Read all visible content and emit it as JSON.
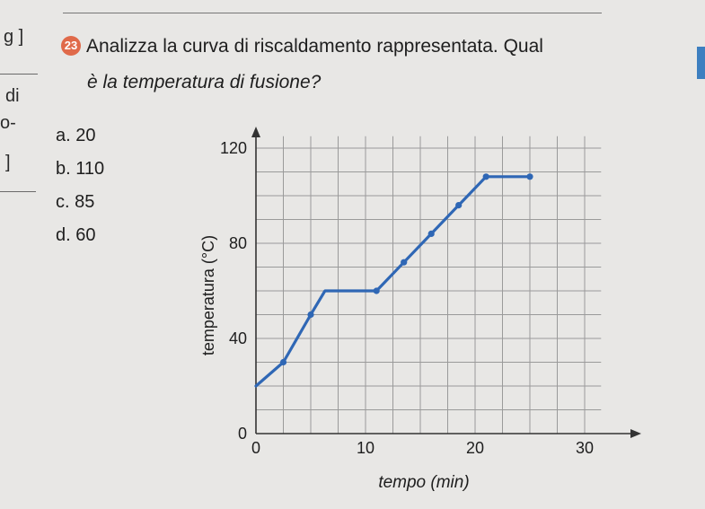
{
  "margin": {
    "l1": "g ]",
    "l2": "di",
    "l3": "o-",
    "l4": "]"
  },
  "question": {
    "number": "23",
    "line1": "Analizza la curva di riscaldamento rappresentata. Qual",
    "line2": "è la temperatura di fusione?"
  },
  "options": [
    {
      "letter": "a.",
      "text": "20"
    },
    {
      "letter": "b.",
      "text": "110"
    },
    {
      "letter": "c.",
      "text": "85"
    },
    {
      "letter": "d.",
      "text": "60"
    }
  ],
  "chart_data": {
    "type": "line",
    "xlabel": "tempo (min)",
    "ylabel": "temperatura (°C)",
    "xlim": [
      0,
      32
    ],
    "ylim": [
      0,
      130
    ],
    "x_ticks": [
      0,
      10,
      20,
      30
    ],
    "y_ticks": [
      0,
      40,
      80,
      120
    ],
    "x_tick_labels": [
      "0",
      "10",
      "20",
      "30"
    ],
    "y_tick_labels": [
      "0",
      "40",
      "80",
      "120"
    ],
    "grid": true,
    "grid_step_x": 2.5,
    "grid_step_y": 10,
    "line_color": "#2f67b5",
    "points": [
      {
        "x": 0,
        "y": 20
      },
      {
        "x": 2.5,
        "y": 30
      },
      {
        "x": 5,
        "y": 50
      },
      {
        "x": 6.3,
        "y": 60
      },
      {
        "x": 11,
        "y": 60
      },
      {
        "x": 13.5,
        "y": 72
      },
      {
        "x": 16,
        "y": 84
      },
      {
        "x": 18.5,
        "y": 96
      },
      {
        "x": 21,
        "y": 108
      },
      {
        "x": 25,
        "y": 108
      }
    ],
    "markers_at": [
      1,
      2,
      4,
      5,
      6,
      7,
      8,
      9
    ]
  }
}
